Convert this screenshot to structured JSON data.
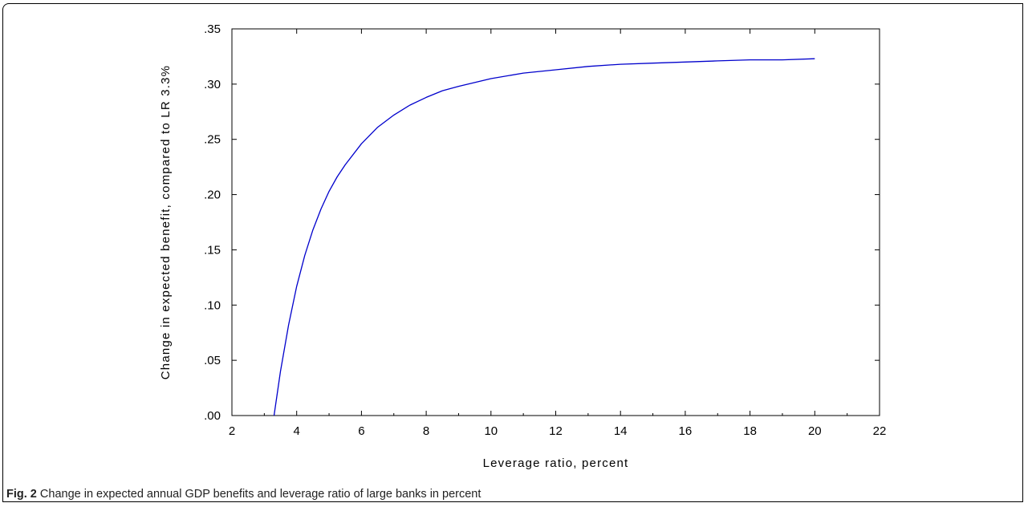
{
  "chart_data": {
    "type": "line",
    "title": "",
    "xlabel": "Leverage ratio, percent",
    "ylabel": "Change in expected benefit, compared to LR 3.3%",
    "xlim": [
      2,
      22
    ],
    "ylim": [
      0,
      0.35
    ],
    "x_ticks": [
      2,
      4,
      6,
      8,
      10,
      12,
      14,
      16,
      18,
      20,
      22
    ],
    "x_tick_labels": [
      "2",
      "4",
      "6",
      "8",
      "10",
      "12",
      "14",
      "16",
      "18",
      "20",
      "22"
    ],
    "y_ticks": [
      0,
      0.05,
      0.1,
      0.15,
      0.2,
      0.25,
      0.3,
      0.35
    ],
    "y_tick_labels": [
      ".00",
      ".05",
      ".10",
      ".15",
      ".20",
      ".25",
      ".30",
      ".35"
    ],
    "grid": false,
    "series": [
      {
        "color": "#0000cc",
        "x": [
          3.3,
          3.5,
          3.75,
          4.0,
          4.25,
          4.5,
          4.75,
          5.0,
          5.25,
          5.5,
          6.0,
          6.5,
          7.0,
          7.5,
          8.0,
          8.5,
          9.0,
          10.0,
          11.0,
          12.0,
          13.0,
          14.0,
          15.0,
          16.0,
          17.0,
          18.0,
          19.0,
          20.0
        ],
        "y": [
          0.0,
          0.04,
          0.082,
          0.117,
          0.145,
          0.168,
          0.187,
          0.203,
          0.216,
          0.227,
          0.246,
          0.261,
          0.272,
          0.281,
          0.288,
          0.294,
          0.298,
          0.305,
          0.31,
          0.313,
          0.316,
          0.318,
          0.319,
          0.32,
          0.321,
          0.322,
          0.322,
          0.323
        ]
      }
    ]
  },
  "caption": {
    "label": "Fig. 2",
    "text": "Change in expected annual GDP benefits and leverage ratio of large banks in percent"
  }
}
